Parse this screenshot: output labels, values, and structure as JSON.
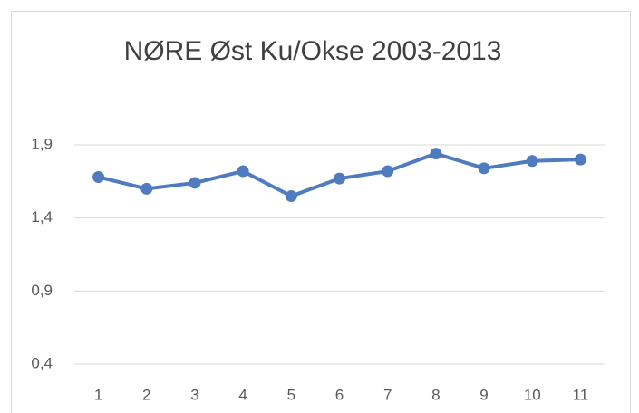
{
  "chart_data": {
    "type": "line",
    "title": "NØRE Øst Ku/Okse 2003-2013",
    "categories": [
      "1",
      "2",
      "3",
      "4",
      "5",
      "6",
      "7",
      "8",
      "9",
      "10",
      "11"
    ],
    "values": [
      1.68,
      1.6,
      1.64,
      1.72,
      1.55,
      1.67,
      1.72,
      1.84,
      1.74,
      1.79,
      1.8
    ],
    "color": "#4f7bbf",
    "ylim": [
      0.4,
      1.9
    ],
    "yticks": [
      {
        "value": 0.4,
        "label": "0,4"
      },
      {
        "value": 0.9,
        "label": "0,9"
      },
      {
        "value": 1.4,
        "label": "1,4"
      },
      {
        "value": 1.9,
        "label": "1,9"
      }
    ],
    "grid": true
  }
}
